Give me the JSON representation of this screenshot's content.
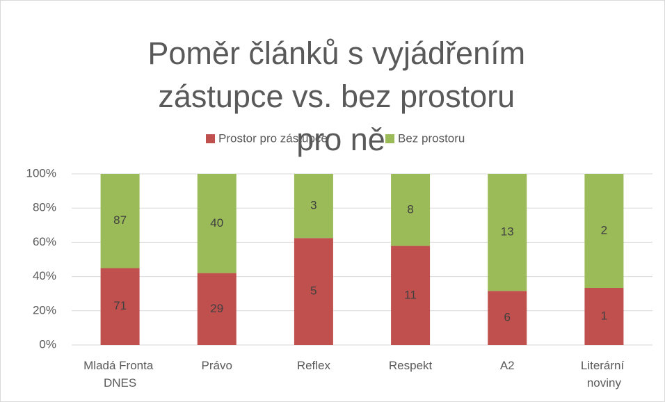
{
  "chart_data": {
    "type": "bar",
    "stacked": "percent",
    "title": "Poměr článků s vyjádřením zástupce vs. bez prostoru pro ně",
    "categories": [
      "Mladá Fronta DNES",
      "Právo",
      "Reflex",
      "Respekt",
      "A2",
      "Literární noviny"
    ],
    "series": [
      {
        "name": "Prostor pro zástupce",
        "color": "#c0504d",
        "values": [
          71,
          29,
          5,
          11,
          6,
          1
        ]
      },
      {
        "name": "Bez prostoru",
        "color": "#9bbb59",
        "values": [
          87,
          40,
          3,
          8,
          13,
          2
        ]
      }
    ],
    "ylim": [
      0,
      100
    ],
    "yticks": [
      {
        "value": 0,
        "label": "0%"
      },
      {
        "value": 20,
        "label": "20%"
      },
      {
        "value": 40,
        "label": "40%"
      },
      {
        "value": 60,
        "label": "60%"
      },
      {
        "value": 80,
        "label": "80%"
      },
      {
        "value": 100,
        "label": "100%"
      }
    ],
    "grid": true,
    "legend": "top"
  }
}
